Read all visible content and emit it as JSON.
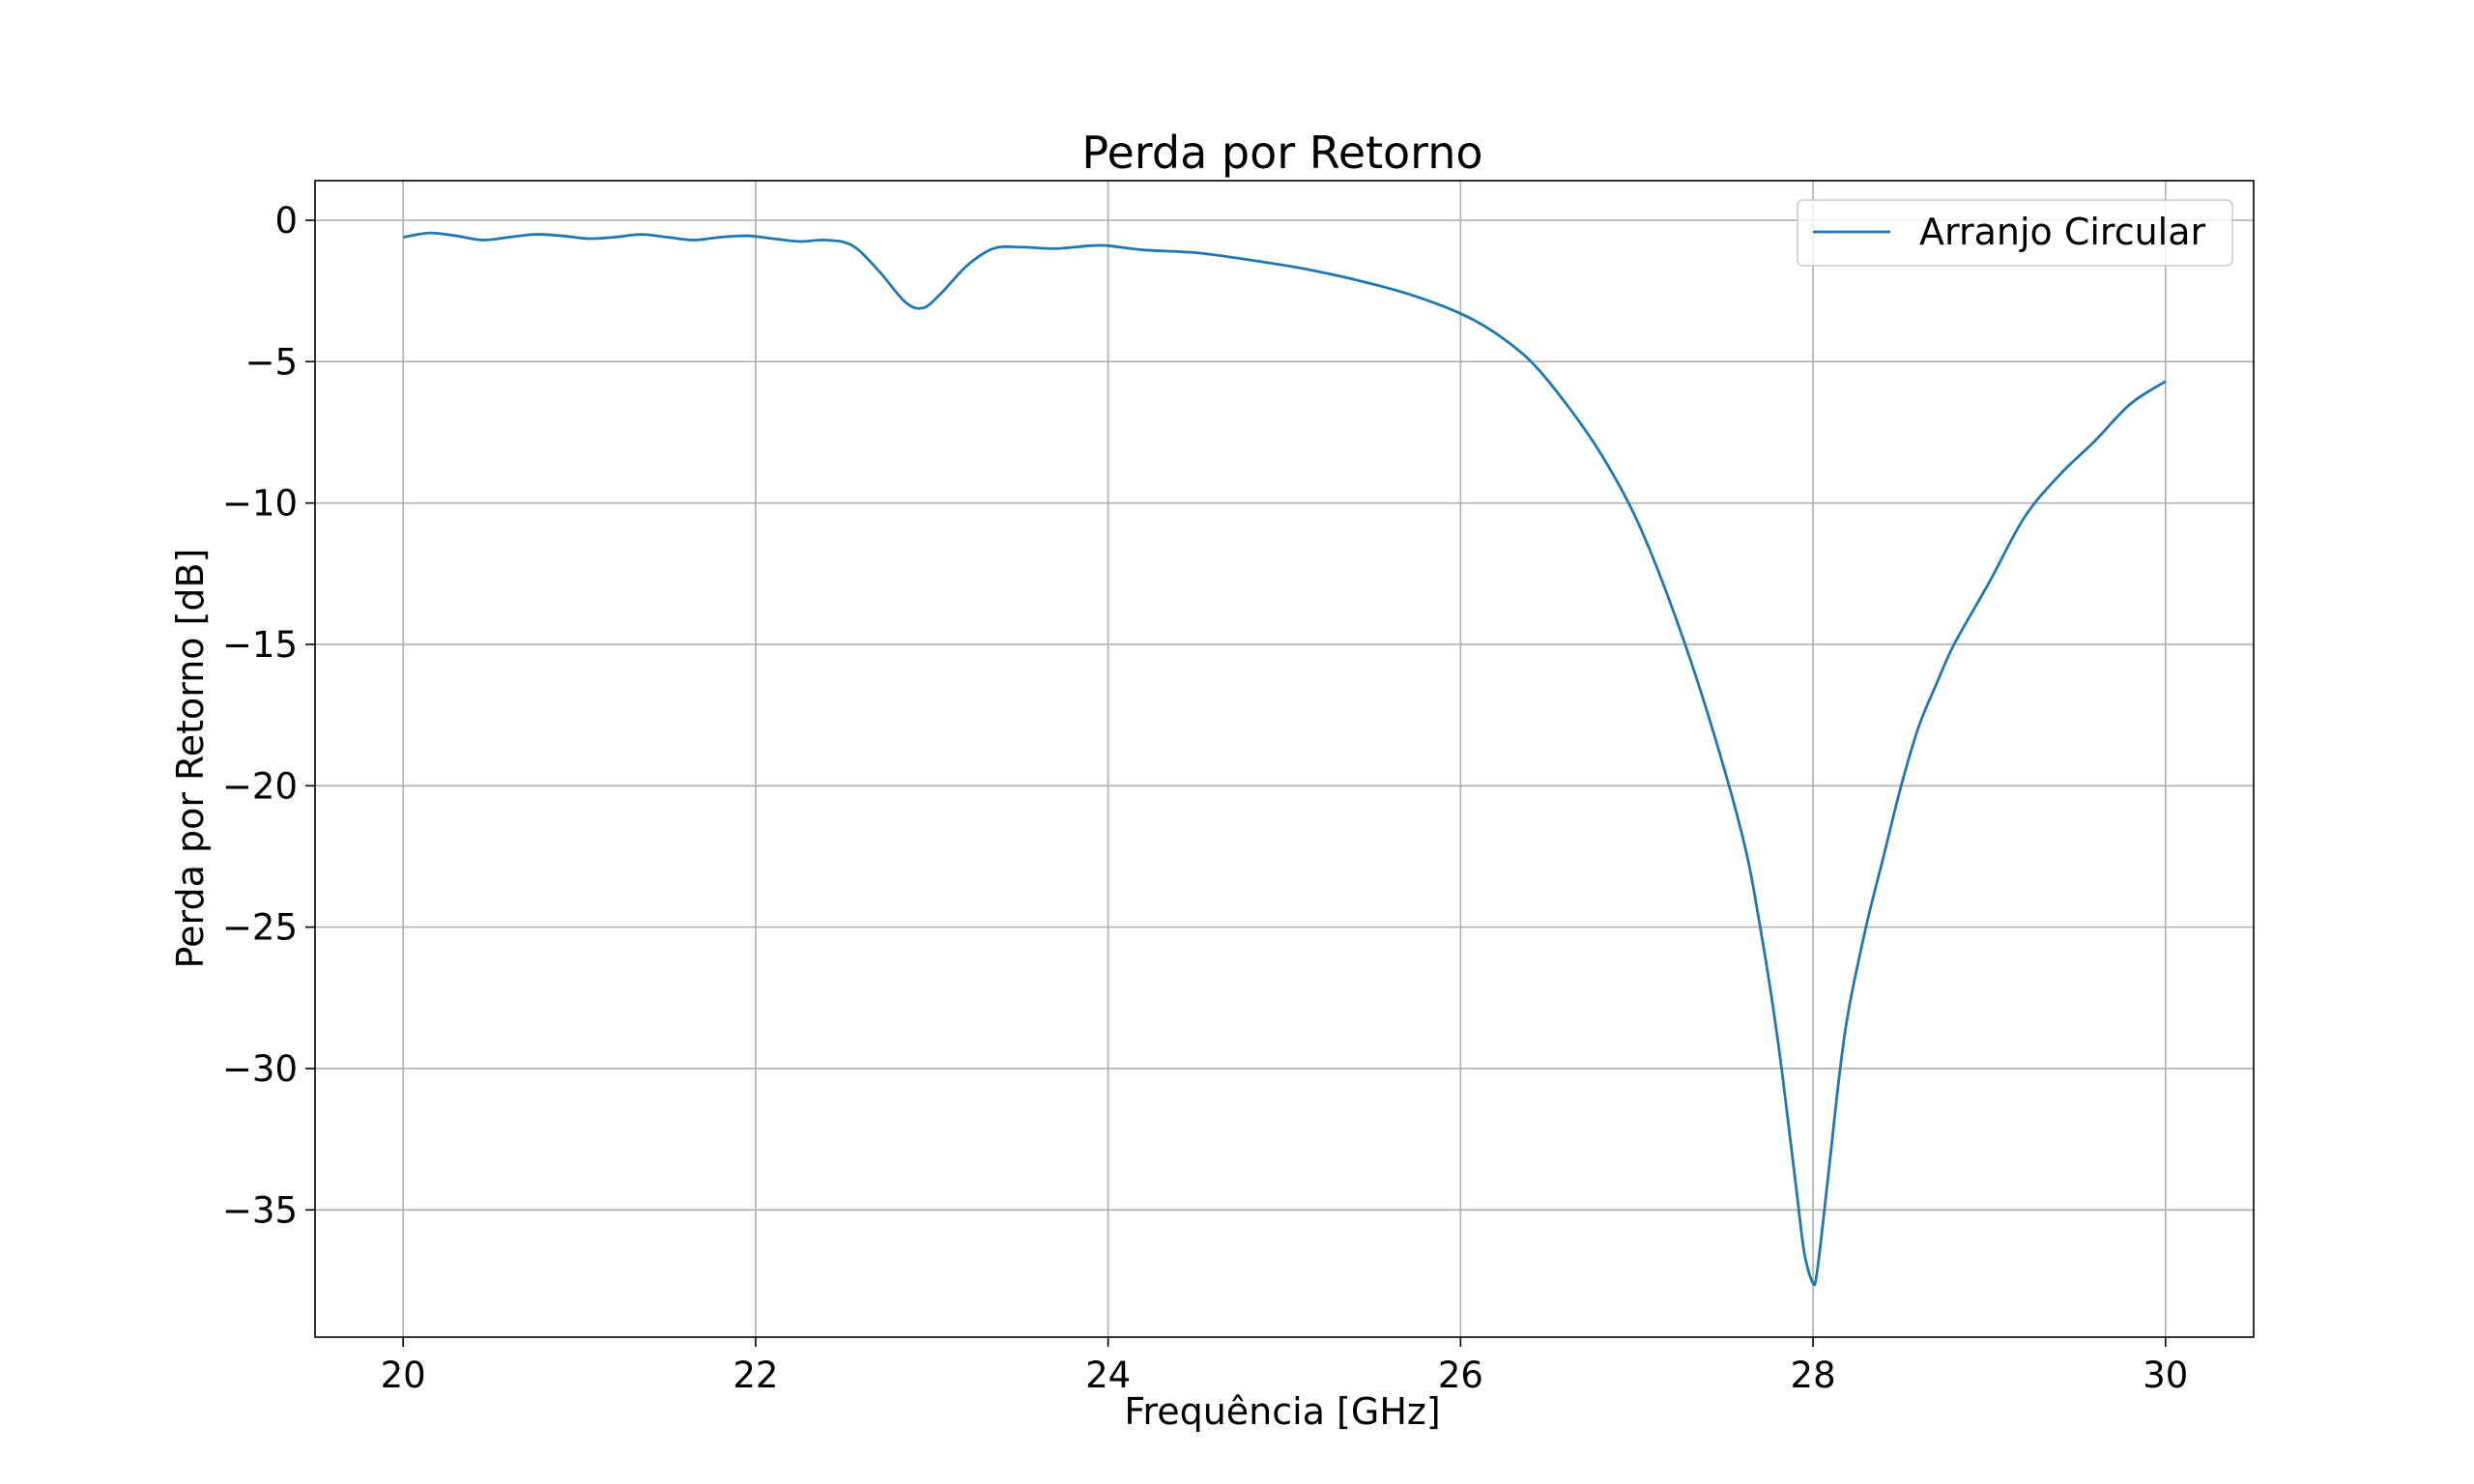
{
  "chart_data": {
    "type": "line",
    "title": "Perda por Retorno",
    "xlabel": "Frequência [GHz]",
    "ylabel": "Perda por Retorno [dB]",
    "xlim": [
      19.5,
      30.5
    ],
    "ylim": [
      -39.5,
      1.4
    ],
    "xticks": [
      20,
      22,
      24,
      26,
      28,
      30
    ],
    "xtick_labels": [
      "20",
      "22",
      "24",
      "26",
      "28",
      "30"
    ],
    "yticks": [
      0,
      -5,
      -10,
      -15,
      -20,
      -25,
      -30,
      -35
    ],
    "ytick_labels": [
      "0",
      "−5",
      "−10",
      "−15",
      "−20",
      "−25",
      "−30",
      "−35"
    ],
    "grid": true,
    "legend_position": "top-right",
    "series": [
      {
        "name": "Arranjo Circular",
        "color": "#1f77b4",
        "x": [
          20.0,
          20.15,
          20.3,
          20.45,
          20.6,
          20.75,
          20.9,
          21.05,
          21.2,
          21.35,
          21.5,
          21.65,
          21.8,
          21.95,
          22.1,
          22.25,
          22.4,
          22.55,
          22.7,
          22.85,
          22.95,
          23.05,
          23.2,
          23.35,
          23.5,
          23.7,
          23.9,
          24.0,
          24.2,
          24.5,
          24.8,
          25.1,
          25.4,
          25.7,
          26.0,
          26.2,
          26.4,
          26.6,
          26.8,
          27.0,
          27.2,
          27.4,
          27.6,
          27.7,
          27.8,
          27.9,
          27.95,
          28.0,
          28.02,
          28.05,
          28.1,
          28.15,
          28.2,
          28.3,
          28.4,
          28.5,
          28.6,
          28.7,
          28.8,
          29.0,
          29.2,
          29.4,
          29.6,
          29.8,
          30.0
        ],
        "y": [
          -0.6,
          -0.45,
          -0.55,
          -0.7,
          -0.6,
          -0.5,
          -0.55,
          -0.65,
          -0.6,
          -0.5,
          -0.6,
          -0.7,
          -0.6,
          -0.55,
          -0.65,
          -0.75,
          -0.7,
          -0.9,
          -1.8,
          -2.9,
          -3.1,
          -2.6,
          -1.6,
          -1.0,
          -0.95,
          -1.0,
          -0.9,
          -0.9,
          -1.05,
          -1.15,
          -1.4,
          -1.7,
          -2.1,
          -2.6,
          -3.3,
          -4.0,
          -5.0,
          -6.5,
          -8.3,
          -10.6,
          -13.7,
          -17.4,
          -21.8,
          -25.0,
          -29.0,
          -34.0,
          -36.5,
          -37.6,
          -37.3,
          -35.8,
          -33.0,
          -30.2,
          -28.0,
          -25.0,
          -22.5,
          -20.0,
          -17.9,
          -16.4,
          -15.0,
          -12.8,
          -10.5,
          -9.0,
          -7.8,
          -6.5,
          -5.7
        ]
      }
    ]
  }
}
